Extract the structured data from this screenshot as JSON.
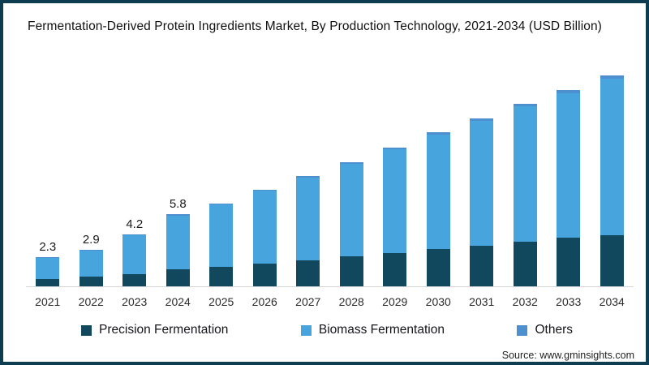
{
  "chart_data": {
    "type": "bar",
    "stacked": true,
    "title": "Fermentation-Derived Protein Ingredients Market, By Production Technology, 2021-2034 (USD Billion)",
    "categories": [
      "2021",
      "2022",
      "2023",
      "2024",
      "2025",
      "2026",
      "2027",
      "2028",
      "2029",
      "2030",
      "2031",
      "2032",
      "2033",
      "2034"
    ],
    "series": [
      {
        "name": "Precision Fermentation",
        "color": "#11485e",
        "values": [
          0.6,
          0.8,
          1.0,
          1.35,
          1.6,
          1.85,
          2.1,
          2.4,
          2.7,
          3.0,
          3.3,
          3.6,
          3.9,
          4.15
        ]
      },
      {
        "name": "Biomass Fermentation",
        "color": "#47a4dd",
        "values": [
          1.66,
          2.05,
          3.14,
          4.37,
          5.0,
          5.84,
          6.67,
          7.46,
          8.34,
          9.22,
          10.01,
          10.89,
          11.68,
          12.61
        ]
      },
      {
        "name": "Others",
        "color": "#4e8fcf",
        "values": [
          0.04,
          0.05,
          0.06,
          0.08,
          0.1,
          0.11,
          0.13,
          0.14,
          0.16,
          0.18,
          0.19,
          0.21,
          0.22,
          0.24
        ]
      }
    ],
    "totals": [
      2.3,
      2.9,
      4.2,
      5.8,
      6.7,
      7.8,
      8.9,
      10.0,
      11.2,
      12.4,
      13.5,
      14.7,
      15.8,
      17.0
    ],
    "bar_labels": [
      "2.3",
      "2.9",
      "4.2",
      "5.8",
      "",
      "",
      "",
      "",
      "",
      "",
      "",
      "",
      "",
      ""
    ],
    "xlabel": "",
    "ylabel": "",
    "ylim": [
      0,
      18
    ],
    "grid": false,
    "legend_position": "bottom"
  },
  "legend": {
    "items": [
      {
        "label": "Precision Fermentation",
        "color": "#11485e"
      },
      {
        "label": "Biomass Fermentation",
        "color": "#47a4dd"
      },
      {
        "label": "Others",
        "color": "#4e8fcf"
      }
    ]
  },
  "source": {
    "text": "Source: www.gminsights.com"
  },
  "colors": {
    "frame_border": "#0e3d52",
    "axis_line": "#d6d6d6",
    "background": "#ffffff",
    "text": "#1a1a1a"
  }
}
